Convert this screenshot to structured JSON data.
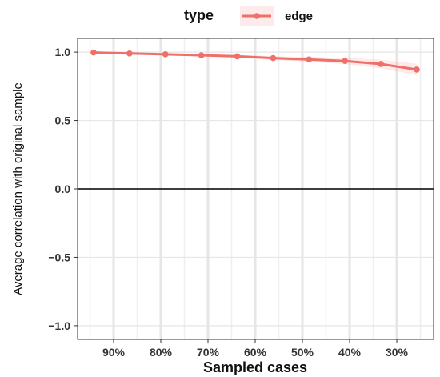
{
  "chart_data": {
    "type": "line",
    "x_tick_labels": [
      "90%",
      "80%",
      "70%",
      "60%",
      "50%",
      "40%",
      "30%"
    ],
    "series": [
      {
        "name": "edge",
        "color": "#ef6f6a",
        "values": [
          0.997,
          0.99,
          0.984,
          0.977,
          0.969,
          0.956,
          0.946,
          0.935,
          0.913,
          0.872
        ],
        "lower": [
          0.993,
          0.985,
          0.978,
          0.969,
          0.958,
          0.942,
          0.928,
          0.912,
          0.882,
          0.83
        ],
        "upper": [
          1.0,
          0.995,
          0.99,
          0.985,
          0.98,
          0.97,
          0.964,
          0.958,
          0.944,
          0.914
        ]
      }
    ],
    "xlabel": "Sampled cases",
    "ylabel": "Average correlation with original sample",
    "ylim": [
      -1.1,
      1.1
    ],
    "yticks": [
      1.0,
      0.5,
      0.0,
      -0.5,
      -1.0
    ],
    "ytick_labels": [
      "1.0",
      "0.5",
      "0.0",
      "−0.5",
      "−1.0"
    ],
    "legend": {
      "title": "type",
      "position": "top"
    },
    "hline": 0,
    "grid": true
  }
}
